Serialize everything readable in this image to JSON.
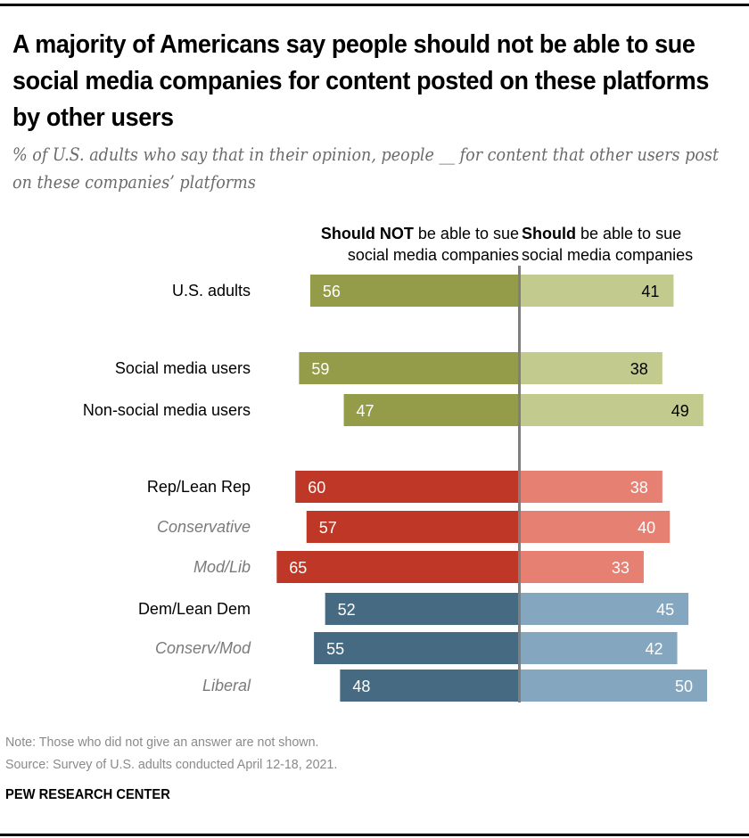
{
  "header": {
    "title": "A majority of Americans say people should not be able to sue social media companies for content posted on these platforms by other users",
    "subtitle": "% of U.S. adults who say that in their opinion, people __ for content that other users post on these companies’ platforms"
  },
  "columns": {
    "left": {
      "bold": "Should NOT",
      "rest_line1": " be able to sue",
      "line2": "social media companies"
    },
    "right": {
      "bold": "Should",
      "rest_line1": " be able to sue",
      "line2": "social media companies"
    }
  },
  "footer": {
    "note": "Note: Those who did not give an answer are not shown.",
    "source": "Source: Survey of U.S. adults conducted April 12-18, 2021.",
    "brand": "PEW RESEARCH CENTER"
  },
  "colors": {
    "olive_dark": "#949c49",
    "olive_light": "#c3ca8e",
    "red_dark": "#bf3827",
    "red_light": "#e58072",
    "blue_dark": "#456a82",
    "blue_light": "#84a7bf",
    "axis": "#7f7f7f",
    "label_gray": "#7a7a7a"
  },
  "chart_data": {
    "type": "bar",
    "orientation": "horizontal-diverging",
    "title": "A majority of Americans say people should not be able to sue social media companies for content posted on these platforms by other users",
    "subtitle": "% of U.S. adults who say that in their opinion, people __ for content that other users post on these companies’ platforms",
    "xlabel": "",
    "ylabel": "",
    "xlim": [
      0,
      100
    ],
    "grid": false,
    "legend": "top",
    "categories": [
      "U.S. adults",
      "Social media users",
      "Non-social media users",
      "Rep/Lean Rep",
      "Conservative",
      "Mod/Lib",
      "Dem/Lean Dem",
      "Conserv/Mod",
      "Liberal"
    ],
    "category_styles": [
      "normal",
      "normal",
      "normal",
      "normal",
      "italic-sub",
      "italic-sub",
      "normal",
      "italic-sub",
      "italic-sub"
    ],
    "category_groups": [
      "total",
      "social",
      "social",
      "rep",
      "rep",
      "rep",
      "dem",
      "dem",
      "dem"
    ],
    "series": [
      {
        "name": "Should NOT be able to sue social media companies",
        "values": [
          56,
          59,
          47,
          60,
          57,
          65,
          52,
          55,
          48
        ]
      },
      {
        "name": "Should be able to sue social media companies",
        "values": [
          41,
          38,
          49,
          38,
          40,
          33,
          45,
          42,
          50
        ]
      }
    ]
  }
}
